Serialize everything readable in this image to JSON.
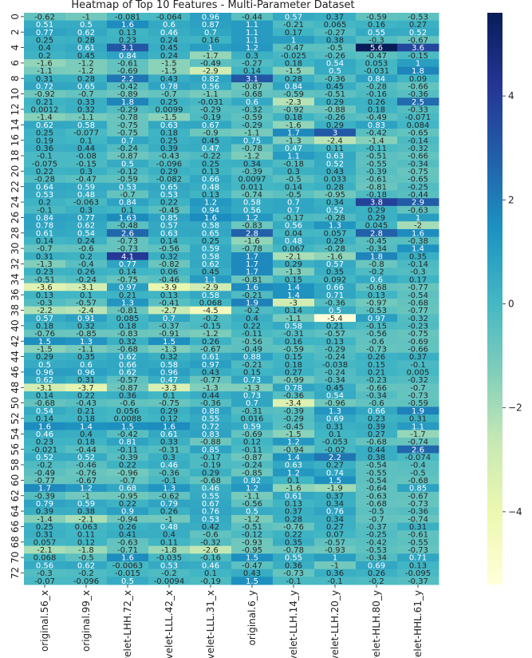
{
  "chart_data": {
    "type": "heatmap",
    "title": "Heatmap of Top 10 Features - Multi-Parameter Dataset",
    "columns": [
      "original.56_x",
      "original.99_x",
      "wavelet-LHH.72_x",
      "wavelet-LLL.42_x",
      "wavelet-LLL.31_x",
      "original.6_y",
      "wavelet-LLH.14_y",
      "wavelet-LLH.20_y",
      "wavelet-HLH.80_y",
      "wavelet-HHL.61_y"
    ],
    "row_count": 74,
    "row_tick_labels": [
      "0",
      "2",
      "4",
      "6",
      "8",
      "10",
      "12",
      "14",
      "16",
      "18",
      "20",
      "22",
      "24",
      "26",
      "28",
      "30",
      "32",
      "34",
      "36",
      "38",
      "40",
      "42",
      "44",
      "46",
      "48",
      "50",
      "52",
      "54",
      "56",
      "58",
      "60",
      "62",
      "64",
      "66",
      "68",
      "70",
      "72"
    ],
    "colorbar": {
      "colormap": "YlGnBu",
      "vmin": -5.4,
      "vmax": 5.6,
      "ticks": [
        4,
        2,
        0,
        -2,
        -4
      ]
    },
    "values": [
      [
        -0.62,
        -1,
        -0.081,
        -0.064,
        0.96,
        -0.44,
        0.57,
        0.37,
        -0.59,
        -0.53
      ],
      [
        0.51,
        0.5,
        1.6,
        0.6,
        0.87,
        1.1,
        -0.21,
        0.065,
        0.16,
        0.27
      ],
      [
        0.77,
        0.62,
        0.13,
        0.46,
        0.7,
        1.1,
        0.17,
        -0.27,
        0.55,
        0.52
      ],
      [
        0.25,
        0.28,
        0.23,
        0.24,
        0.16,
        1.1,
        1,
        0.38,
        -0.3,
        -0.67
      ],
      [
        0.4,
        0.61,
        3.1,
        0.45,
        1,
        1.2,
        -0.47,
        -0.5,
        5.6,
        3.6
      ],
      [
        0.2,
        0.45,
        0.84,
        0.24,
        -1.7,
        0.3,
        -0.025,
        -0.26,
        -0.47,
        -0.15
      ],
      [
        -1.6,
        -1.2,
        -0.61,
        -1.5,
        -0.49,
        -0.27,
        0.18,
        0.54,
        0.053,
        1
      ],
      [
        -1.1,
        -1.2,
        -0.69,
        -1.5,
        -2.9,
        0.14,
        -1.5,
        0.5,
        -0.031,
        1.8
      ],
      [
        0.31,
        0.28,
        2.2,
        0.43,
        0.82,
        3.1,
        0.28,
        -0.36,
        0.84,
        0.09
      ],
      [
        0.72,
        0.65,
        -0.42,
        0.78,
        0.56,
        -0.87,
        0.84,
        0.45,
        -0.28,
        -0.66
      ],
      [
        -0.92,
        -0.7,
        -0.89,
        -0.7,
        -1.1,
        -0.68,
        -0.59,
        -0.51,
        -0.16,
        -0.36
      ],
      [
        0.21,
        0.33,
        1.8,
        0.25,
        -0.031,
        0.6,
        -2.3,
        0.29,
        0.26,
        2.5
      ],
      [
        0.0012,
        0.32,
        -0.29,
        0.0099,
        -0.29,
        -0.32,
        -0.92,
        -0.88,
        0.18,
        -0.33
      ],
      [
        -1.4,
        -1.1,
        -0.78,
        -1.5,
        -0.19,
        -0.59,
        0.18,
        -0.26,
        -0.49,
        -0.071
      ],
      [
        0.62,
        0.58,
        -0.75,
        0.63,
        0.67,
        -0.29,
        -1.6,
        0.29,
        0.83,
        0.084
      ],
      [
        0.25,
        -0.077,
        -0.75,
        0.18,
        -0.9,
        -1.1,
        1.7,
        3,
        -0.42,
        -0.65
      ],
      [
        0.19,
        0.1,
        0.7,
        0.25,
        0.45,
        0.75,
        -1.3,
        -2.4,
        -1.4,
        -0.14
      ],
      [
        0.36,
        0.44,
        -0.24,
        0.39,
        0.47,
        -0.78,
        0.47,
        0.11,
        -0.11,
        -0.32
      ],
      [
        -0.1,
        -0.08,
        -0.87,
        -0.43,
        -0.22,
        -1.2,
        1.1,
        0.63,
        -0.51,
        -0.66
      ],
      [
        -0.075,
        -0.15,
        0.5,
        -0.096,
        0.25,
        0.34,
        -0.18,
        0.52,
        -0.55,
        -0.34
      ],
      [
        0.22,
        0.3,
        -0.12,
        0.29,
        0.13,
        -0.39,
        0.3,
        0.43,
        -0.39,
        -0.75
      ],
      [
        -0.28,
        -0.47,
        -0.59,
        -0.082,
        0.66,
        0.0097,
        -0.5,
        0.033,
        -0.61,
        -0.65
      ],
      [
        0.64,
        0.59,
        0.53,
        0.65,
        0.48,
        0.011,
        0.14,
        0.28,
        -0.81,
        -0.25
      ],
      [
        0.53,
        0.48,
        -0.7,
        0.53,
        0.13,
        -0.74,
        -0.5,
        -0.95,
        -0.18,
        -0.44
      ],
      [
        0.2,
        -0.063,
        0.84,
        0.22,
        1.2,
        0.58,
        0.7,
        0.34,
        3.8,
        2.9
      ],
      [
        -0.1,
        0.3,
        0.1,
        -0.45,
        0.94,
        0.56,
        0.7,
        0.52,
        0.29,
        -0.63
      ],
      [
        0.84,
        0.77,
        1.63,
        0.85,
        1.6,
        1.2,
        -0.17,
        -0.28,
        0.29,
        1
      ],
      [
        0.78,
        0.62,
        -0.48,
        0.57,
        0.58,
        -0.83,
        0.56,
        1.3,
        0.045,
        -2
      ],
      [
        0.61,
        0.54,
        2.6,
        0.63,
        0.65,
        2.8,
        0.04,
        0.057,
        2.8,
        1.6
      ],
      [
        0.14,
        0.24,
        -0.73,
        0.14,
        0.25,
        -1.6,
        0.48,
        0.29,
        -0.45,
        -0.38
      ],
      [
        -0.7,
        -0.6,
        -0.73,
        -0.56,
        0.59,
        -0.78,
        0.067,
        -0.28,
        -0.34,
        1.4
      ],
      [
        0.31,
        0.2,
        4.1,
        0.32,
        0.58,
        1.7,
        -2.1,
        -1.6,
        1.8,
        0.35
      ],
      [
        -1.3,
        -0.4,
        0.77,
        -0.82,
        0.62,
        1.7,
        0.29,
        0.57,
        -0.8,
        -0.14
      ],
      [
        0.23,
        0.26,
        0.14,
        0.06,
        0.45,
        1.7,
        -1.3,
        0.35,
        -0.2,
        -0.3
      ],
      [
        -0.51,
        -0.24,
        -0.75,
        -0.46,
        1.1,
        -0.81,
        0.15,
        0.092,
        0.6,
        0.17
      ],
      [
        -3.6,
        -3.1,
        0.97,
        -3.9,
        -2.9,
        1.6,
        1.4,
        0.66,
        -0.68,
        -0.77
      ],
      [
        0.13,
        0.1,
        0.21,
        0.13,
        0.58,
        -0.21,
        1.4,
        0.71,
        0.13,
        -0.54
      ],
      [
        -0.3,
        -0.57,
        1.3,
        -0.41,
        0.068,
        1.9,
        -3,
        -0.36,
        -0.97,
        -0.68
      ],
      [
        -2.2,
        -2.4,
        -0.81,
        -2.7,
        -4.5,
        -0.2,
        0.14,
        0.5,
        -0.53,
        -0.77
      ],
      [
        0.57,
        0.91,
        0.085,
        0.7,
        -0.2,
        0.4,
        -1.1,
        -5.4,
        0.97,
        -0.32
      ],
      [
        0.18,
        0.32,
        0.18,
        -0.37,
        -0.15,
        0.22,
        0.58,
        0.21,
        -0.15,
        -0.23
      ],
      [
        -0.76,
        -0.85,
        -0.83,
        -0.91,
        -1.2,
        -0.11,
        -0.31,
        -0.57,
        -0.56,
        -0.75
      ],
      [
        1.5,
        1.3,
        0.32,
        1.5,
        0.26,
        -0.56,
        0.16,
        0.13,
        -0.6,
        -0.69
      ],
      [
        -1.5,
        -1.1,
        -0.68,
        -1.3,
        -0.67,
        -0.49,
        -0.59,
        -0.29,
        -0.73,
        -0.66
      ],
      [
        0.29,
        0.35,
        0.62,
        0.32,
        0.61,
        0.88,
        0.15,
        -0.24,
        0.26,
        0.37
      ],
      [
        0.5,
        0.6,
        0.66,
        0.58,
        0.97,
        -0.21,
        0.18,
        -0.038,
        0.15,
        -0.1
      ],
      [
        0.96,
        0.96,
        0.62,
        0.96,
        0.43,
        0.15,
        0.27,
        -0.24,
        0.21,
        0.005
      ],
      [
        0.62,
        0.31,
        -0.57,
        0.47,
        -0.77,
        0.73,
        -0.99,
        -0.34,
        -0.23,
        -0.32
      ],
      [
        -3.1,
        -3.7,
        -0.87,
        -3.3,
        -1.3,
        -1.3,
        0.78,
        0.45,
        -0.66,
        -0.7
      ],
      [
        0.14,
        0.22,
        0.36,
        0.1,
        0.44,
        0.73,
        -0.36,
        0.54,
        -0.34,
        -0.73
      ],
      [
        -0.68,
        -0.43,
        -0.6,
        -0.75,
        -0.36,
        0.7,
        -3.4,
        -0.96,
        -0.6,
        -0.59
      ],
      [
        0.54,
        0.21,
        0.056,
        0.29,
        0.88,
        -0.31,
        -0.39,
        1.3,
        0.66,
        1.9
      ],
      [
        0.14,
        0.18,
        0.0088,
        0.12,
        0.55,
        0.016,
        -0.29,
        0.69,
        0.23,
        0.31
      ],
      [
        1.6,
        1.4,
        1.5,
        1.6,
        0.72,
        0.59,
        -0.45,
        0.31,
        0.39,
        1.1
      ],
      [
        0.46,
        0.4,
        -0.42,
        0.61,
        0.83,
        -0.69,
        -1.5,
        0.1,
        0.27,
        -1.7
      ],
      [
        0.23,
        0.18,
        0.81,
        0.33,
        -0.88,
        0.12,
        1.2,
        -0.053,
        -0.68,
        -0.74
      ],
      [
        -0.021,
        -0.44,
        -0.11,
        -0.31,
        0.85,
        -0.11,
        -0.94,
        -0.02,
        0.44,
        2.6
      ],
      [
        0.52,
        0.52,
        -0.39,
        0.3,
        -0.17,
        -0.87,
        1.4,
        2.2,
        0.38,
        -0.074
      ],
      [
        -0.2,
        -0.46,
        0.22,
        0.46,
        -0.19,
        -0.24,
        0.63,
        0.27,
        -0.54,
        -0.4
      ],
      [
        -0.49,
        -0.76,
        -0.96,
        -0.36,
        0.29,
        -0.85,
        1.2,
        0.74,
        -0.55,
        -0.5
      ],
      [
        -0.77,
        -0.67,
        -0.7,
        -0.1,
        -0.68,
        0.82,
        0.1,
        1.5,
        -0.54,
        -0.68
      ],
      [
        1.7,
        1.2,
        0.68,
        1.3,
        0.46,
        1.2,
        -1.6,
        -1.9,
        -0.64,
        0.85
      ],
      [
        -0.39,
        -1,
        -0.95,
        -0.62,
        0.55,
        -1.1,
        0.61,
        0.37,
        -0.63,
        -0.67
      ],
      [
        0.79,
        0.59,
        0.22,
        0.79,
        0.67,
        -0.56,
        0.13,
        0.34,
        -0.68,
        -0.73
      ],
      [
        0.39,
        0.38,
        0.9,
        0.26,
        0.76,
        0.5,
        0.37,
        0.76,
        -0.5,
        -0.36
      ],
      [
        -1.4,
        -2.1,
        -0.94,
        -1,
        0.53,
        -1.2,
        0.28,
        0.34,
        -0.7,
        -0.74
      ],
      [
        0.25,
        0.063,
        0.26,
        0.48,
        0.42,
        -0.51,
        -0.76,
        0.27,
        -0.37,
        0.31
      ],
      [
        0.31,
        0.11,
        0.41,
        0.4,
        -0.6,
        -0.12,
        0.22,
        0.07,
        -0.25,
        -0.61
      ],
      [
        0.057,
        0.12,
        -0.63,
        0.11,
        -0.32,
        -0.93,
        0.35,
        -0.57,
        -0.42,
        -0.55
      ],
      [
        -2.1,
        -1.8,
        -0.71,
        -1.8,
        -2.6,
        -0.95,
        -0.78,
        -0.93,
        -0.53,
        -0.73
      ],
      [
        0.068,
        -0.5,
        1.6,
        -0.035,
        -0.16,
        1.5,
        0.55,
        1,
        -0.34,
        0.71
      ],
      [
        0.56,
        0.62,
        -0.0063,
        0.53,
        0.46,
        -0.47,
        0.36,
        -1,
        0.69,
        0.13
      ],
      [
        -0.3,
        -0.2,
        -0.015,
        -0.2,
        0.1,
        0.43,
        -0.73,
        0.36,
        0.26,
        -0.095
      ],
      [
        -0.07,
        -0.096,
        0.5,
        -0.0094,
        -0.19,
        1.5,
        -0.1,
        -0.1,
        -0.2,
        -0.37
      ]
    ]
  }
}
